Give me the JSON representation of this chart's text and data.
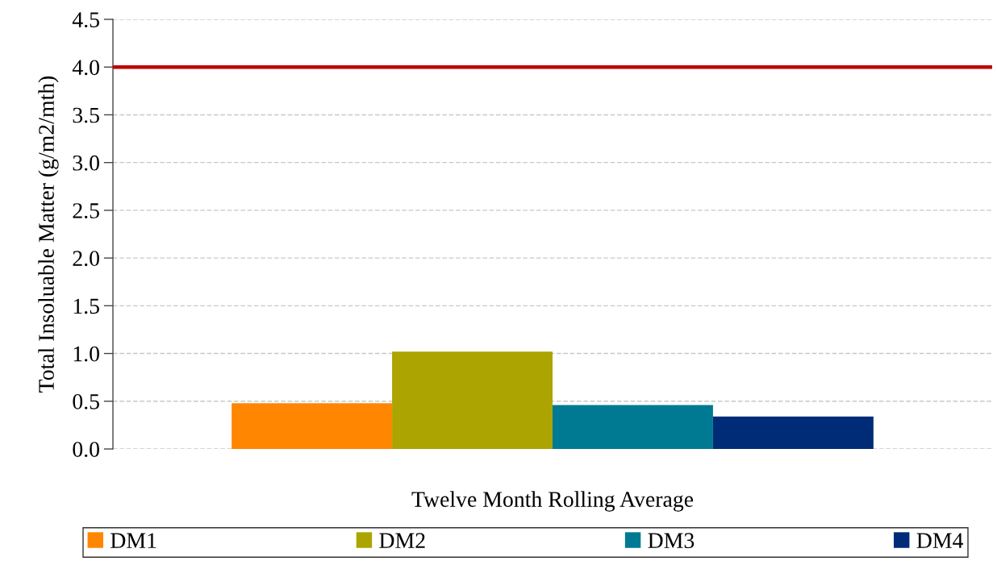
{
  "chart_data": {
    "type": "bar",
    "categories": [
      null
    ],
    "xlabel": "Twelve Month Rolling Average",
    "ylabel": "Total Insoluable Matter (g/m2/mth)",
    "series": [
      {
        "name": "DM1",
        "color": "#ff8600",
        "values": [
          0.48
        ]
      },
      {
        "name": "DM2",
        "color": "#aca400",
        "values": [
          1.02
        ]
      },
      {
        "name": "DM3",
        "color": "#007a92",
        "values": [
          0.46
        ]
      },
      {
        "name": "DM4",
        "color": "#002c77",
        "values": [
          0.34
        ]
      }
    ],
    "ylim": [
      0,
      4.5
    ],
    "yticks": [
      {
        "value": 0,
        "label": "0.0"
      },
      0.5,
      {
        "value": 1,
        "label": "1.0"
      },
      1.5,
      {
        "value": 2,
        "label": "2.0"
      },
      2.5,
      {
        "value": 3,
        "label": "3.0"
      },
      3.5,
      {
        "value": 4,
        "label": "4.0"
      },
      4.5
    ],
    "grid": "y",
    "legend": "bottom",
    "ref_lines": [
      {
        "axis": "y",
        "value": 4.0,
        "color": "#c00000"
      }
    ]
  }
}
